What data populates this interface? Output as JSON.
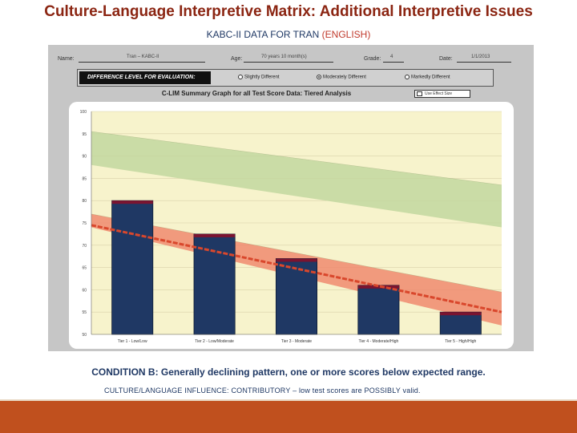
{
  "slide": {
    "title": "Culture-Language Interpretive Matrix: Additional Interpretive Issues",
    "subtitle_prefix": "KABC-II DATA FOR TRAN ",
    "subtitle_accent": "(ENGLISH)",
    "caption_main": "CONDITION B:  Generally declining pattern, one or more scores below expected range.",
    "caption_sub": "CULTURE/LANGUAGE INFLUENCE: CONTRIBUTORY – low test scores are POSSIBLY valid."
  },
  "form": {
    "name_label": "Name:",
    "name_value": "Tran – KABC-II",
    "age_label": "Age:",
    "age_value": "70 years 10 month(s)",
    "grade_label": "Grade:",
    "grade_value": "4",
    "date_label": "Date:",
    "date_value": "1/1/2013",
    "difference_label": "DIFFERENCE LEVEL FOR EVALUATION:",
    "options": [
      {
        "label": "Slightly Different",
        "selected": false
      },
      {
        "label": "Moderately Different",
        "selected": true
      },
      {
        "label": "Markedly Different",
        "selected": false
      }
    ]
  },
  "chart_data": {
    "type": "bar",
    "title": "C-LIM Summary Graph for all Test Score Data: Tiered Analysis",
    "legend_checkbox": "Use Effect Size",
    "categories": [
      "Tier 1 - Low/Low",
      "Tier 2 - Low/Moderate",
      "Tier 3 - Moderate",
      "Tier 4 - Moderate/High",
      "Tier 5 - High/High"
    ],
    "values": [
      80,
      72.5,
      67,
      61,
      55
    ],
    "ylim": [
      50,
      100
    ],
    "yticks": [
      50,
      55,
      60,
      65,
      70,
      75,
      80,
      85,
      90,
      95,
      100
    ],
    "grid": true,
    "bands": [
      {
        "name": "Slightly Different",
        "color": "#c2d79f",
        "upper": [
          95.5,
          83.5
        ],
        "lower": [
          88,
          74
        ]
      },
      {
        "name": "Moderately Different",
        "color": "#f08a6e",
        "upper": [
          77,
          59.5
        ],
        "lower": [
          74,
          52
        ]
      }
    ],
    "trend_line": [
      74.5,
      55
    ],
    "colors": {
      "bar": "#1f3864",
      "bar_top": "#7b1430",
      "plot_bg": "#f7f3cc",
      "trend": "#d9472c"
    }
  }
}
